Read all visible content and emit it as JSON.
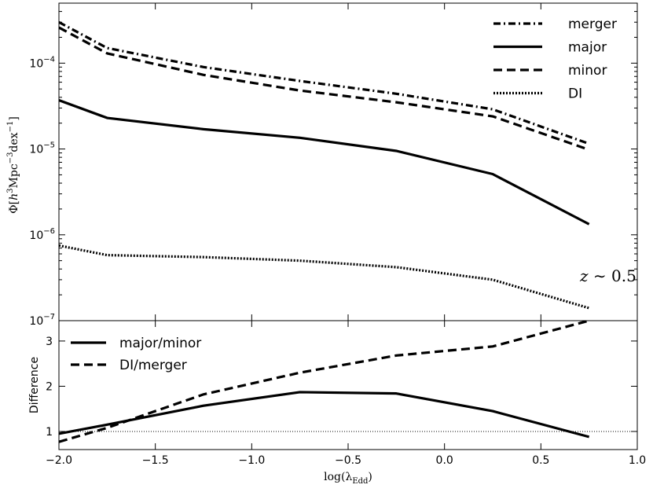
{
  "chart_data": [
    {
      "type": "line",
      "panel": "top",
      "title": "",
      "xlabel": "",
      "ylabel_parts": {
        "phi": "Φ[",
        "h": "h",
        "exp3": "3",
        "mpc": "Mpc",
        "expm3": "−3",
        "dex": "dex",
        "expm1": "−1",
        "close": "]"
      },
      "yscale": "log",
      "ylim": [
        1e-07,
        0.0005
      ],
      "xlim": [
        -2.0,
        1.0
      ],
      "y_ticks": [
        {
          "value": 1e-07,
          "base": "10",
          "exp": "−7"
        },
        {
          "value": 1e-06,
          "base": "10",
          "exp": "−6"
        },
        {
          "value": 1e-05,
          "base": "10",
          "exp": "−5"
        },
        {
          "value": 0.0001,
          "base": "10",
          "exp": "−4"
        }
      ],
      "annotation": {
        "z": "z",
        "rest": " ∼ 0.5"
      },
      "legend_position": "top-right",
      "series": [
        {
          "name": "merger",
          "style": "dashdot",
          "x": [
            -2.0,
            -1.75,
            -1.25,
            -0.75,
            -0.25,
            0.25,
            0.75
          ],
          "y": [
            0.0003,
            0.00015,
            9e-05,
            6.2e-05,
            4.4e-05,
            2.9e-05,
            1.15e-05
          ]
        },
        {
          "name": "major",
          "style": "solid",
          "x": [
            -2.0,
            -1.75,
            -1.25,
            -0.75,
            -0.25,
            0.25,
            0.75
          ],
          "y": [
            3.7e-05,
            2.3e-05,
            1.7e-05,
            1.35e-05,
            9.5e-06,
            5.1e-06,
            1.33e-06
          ]
        },
        {
          "name": "minor",
          "style": "dashed",
          "x": [
            -2.0,
            -1.75,
            -1.25,
            -0.75,
            -0.25,
            0.25,
            0.75
          ],
          "y": [
            0.00026,
            0.00013,
            7.3e-05,
            4.8e-05,
            3.5e-05,
            2.4e-05,
            9.8e-06
          ]
        },
        {
          "name": "DI",
          "style": "dotted",
          "x": [
            -2.0,
            -1.75,
            -1.25,
            -0.75,
            -0.25,
            0.25,
            0.75
          ],
          "y": [
            7.5e-07,
            5.8e-07,
            5.5e-07,
            5e-07,
            4.2e-07,
            3e-07,
            1.4e-07
          ]
        }
      ]
    },
    {
      "type": "line",
      "panel": "bottom",
      "title": "",
      "xlabel_parts": {
        "main": "log(λ",
        "sub": "Edd",
        "close": ")"
      },
      "ylabel": "Difference",
      "ylim": [
        0.6,
        3.45
      ],
      "xlim": [
        -2.0,
        1.0
      ],
      "x_ticks": [
        -2.0,
        -1.5,
        -1.0,
        -0.5,
        0.0,
        0.5,
        1.0
      ],
      "x_tick_labels": [
        "−2.0",
        "−1.5",
        "−1.0",
        "−0.5",
        "0.0",
        "0.5",
        "1.0"
      ],
      "y_ticks": [
        1,
        2,
        3
      ],
      "y_tick_labels": [
        "1",
        "2",
        "3"
      ],
      "reference_line": 1.0,
      "legend_position": "top-left",
      "series": [
        {
          "name": "major/minor",
          "style": "solid",
          "x": [
            -2.0,
            -1.75,
            -1.25,
            -0.75,
            -0.25,
            0.25,
            0.75
          ],
          "y": [
            0.95,
            1.15,
            1.57,
            1.87,
            1.84,
            1.45,
            0.88
          ]
        },
        {
          "name": "DI/merger",
          "style": "dashed",
          "x": [
            -2.0,
            -1.75,
            -1.25,
            -0.75,
            -0.25,
            0.25,
            0.75
          ],
          "y": [
            0.77,
            1.08,
            1.82,
            2.3,
            2.68,
            2.88,
            3.45
          ]
        }
      ]
    }
  ]
}
